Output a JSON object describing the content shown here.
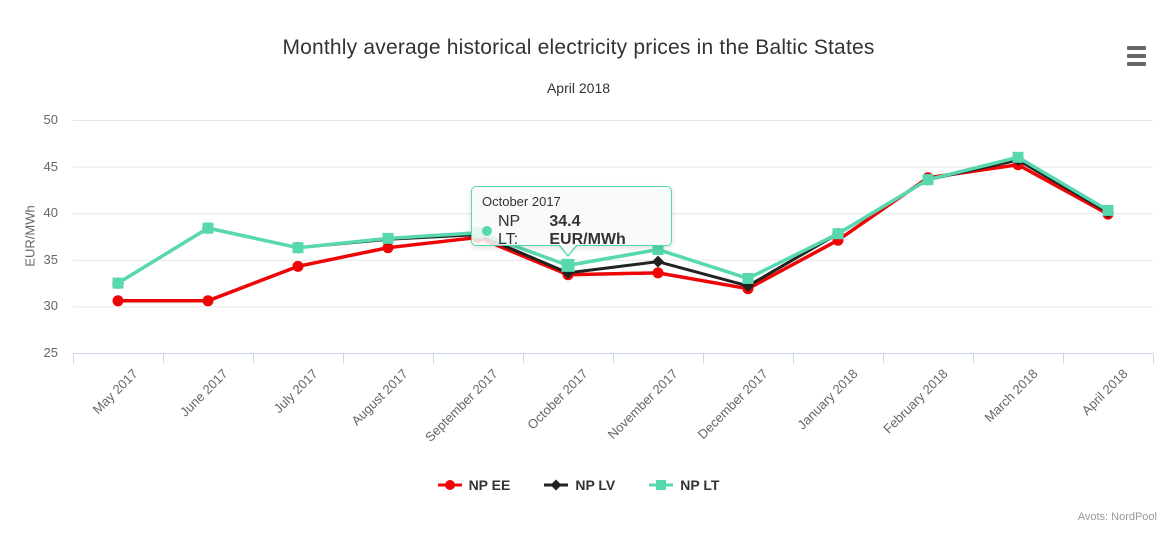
{
  "chart_data": {
    "type": "line",
    "title": "Monthly average historical electricity prices in the Baltic States",
    "subtitle": "April 2018",
    "ylabel": "EUR/MWh",
    "xlabel": "",
    "ylim": [
      25,
      50
    ],
    "yticks": [
      25,
      30,
      35,
      40,
      45,
      50
    ],
    "grid": "horizontal",
    "legend_position": "bottom-center",
    "categories": [
      "May 2017",
      "June 2017",
      "July 2017",
      "August 2017",
      "September 2017",
      "October 2017",
      "November 2017",
      "December 2017",
      "January 2018",
      "February 2018",
      "March 2018",
      "April 2018"
    ],
    "series": [
      {
        "name": "NP EE",
        "color": "#EE0505",
        "marker": "circle",
        "values": [
          30.6,
          30.6,
          34.3,
          36.3,
          37.4,
          33.4,
          33.6,
          31.9,
          37.1,
          43.8,
          45.2,
          39.9
        ]
      },
      {
        "name": "NP LV",
        "color": "#222222",
        "marker": "diamond",
        "values": [
          32.5,
          38.4,
          36.3,
          37.2,
          37.7,
          33.6,
          34.8,
          32.2,
          37.8,
          43.6,
          45.7,
          40.1
        ]
      },
      {
        "name": "NP LT",
        "color": "#57D8AE",
        "marker": "square",
        "values": [
          32.5,
          38.4,
          36.3,
          37.3,
          37.9,
          34.4,
          36.1,
          33.0,
          37.8,
          43.6,
          46.0,
          40.3
        ]
      }
    ],
    "tooltip": {
      "category": "October 2017",
      "series_label": "NP LT:",
      "value_text": "34.4 EUR/MWh",
      "series_index": 2,
      "point_index": 5
    },
    "style": {
      "grid_color": "#E6E6E6",
      "axis_line_color": "#CCD6EB",
      "label_color": "#666666",
      "title_color": "#333333"
    }
  },
  "export_menu": {
    "icon": "hamburger-icon"
  },
  "credit": "Avots: NordPool"
}
